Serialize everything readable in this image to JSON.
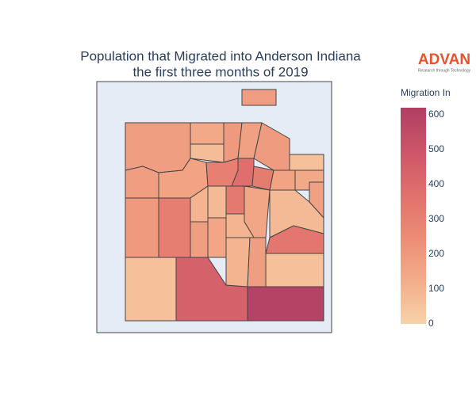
{
  "chart_data": {
    "type": "choropleth",
    "title": [
      "Population that Migrated into Anderson Indiana",
      "the first three months of 2019"
    ],
    "colorbar_title": "Migration In",
    "zlim": [
      0,
      620
    ],
    "zticks": [
      0,
      100,
      200,
      300,
      400,
      500,
      600
    ],
    "colorscale": [
      "#f6d2a9",
      "#f3ad8a",
      "#ec8c76",
      "#e0706c",
      "#cc5568",
      "#b13f64"
    ],
    "values": [
      180,
      180,
      140,
      70,
      200,
      170,
      190,
      60,
      160,
      180,
      300,
      380,
      320,
      160,
      140,
      200,
      310,
      100,
      80,
      330,
      150,
      80,
      170,
      180,
      150,
      100,
      340,
      60,
      440,
      100,
      180,
      60,
      600
    ],
    "logo": {
      "name": "ADVAN",
      "tagline": "Research through Technology"
    }
  }
}
